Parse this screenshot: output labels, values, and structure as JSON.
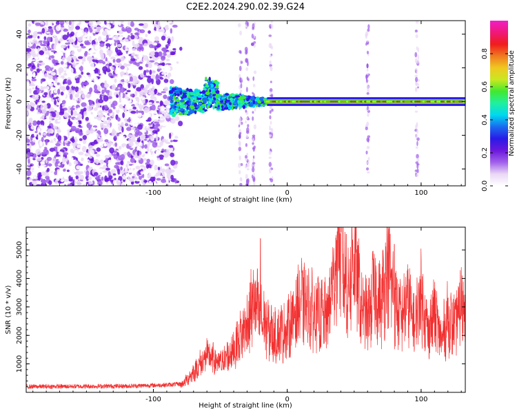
{
  "title": "C2E2.2024.290.02.39.G24",
  "chart_data": [
    {
      "type": "heatmap",
      "xlabel": "Height of straight line (km)",
      "ylabel": "Frequency (Hz)",
      "xlim": [
        -195,
        133
      ],
      "ylim": [
        -50,
        48
      ],
      "xticks": [
        -100,
        0,
        100
      ],
      "yticks": [
        -40,
        -20,
        0,
        20,
        40
      ],
      "colorbar": {
        "label": "Normalized spectral amplitude",
        "range": [
          0,
          1
        ],
        "ticks": [
          "0.0",
          "0.2",
          "0.4",
          "0.6",
          "0.8"
        ],
        "colors": [
          "#ffffff",
          "#ead8f6",
          "#a060ea",
          "#6b18dc",
          "#2a1ae6",
          "#1a6bf0",
          "#00d8f0",
          "#20f0a0",
          "#40e830",
          "#c8e820",
          "#f0c820",
          "#f07a20",
          "#f01c1c",
          "#f01878",
          "#f01ec8"
        ]
      },
      "features": {
        "noise_region_x": [
          -195,
          -80
        ],
        "transition_region_x": [
          -87,
          -15
        ],
        "line_frequency_hz": 0,
        "line_x_range": [
          -15,
          133
        ],
        "line_peak_amplitude": 0.95,
        "faint_vertical_stripes_x": [
          -35,
          -30,
          -25,
          -12,
          60,
          97
        ]
      }
    },
    {
      "type": "line",
      "xlabel": "Height of straight line (km)",
      "ylabel": "SNR (10 * v/v)",
      "xlim": [
        -195,
        133
      ],
      "ylim": [
        0,
        5800
      ],
      "xticks": [
        -100,
        0,
        100
      ],
      "yticks": [
        1000,
        2000,
        3000,
        4000,
        5000
      ],
      "color": "#f23030",
      "envelope": {
        "x": [
          -195,
          -120,
          -90,
          -78,
          -70,
          -60,
          -50,
          -40,
          -30,
          -25,
          -20,
          -10,
          0,
          10,
          20,
          30,
          35,
          40,
          45,
          50,
          55,
          60,
          65,
          70,
          75,
          80,
          85,
          90,
          95,
          100,
          105,
          110,
          115,
          120,
          125,
          130
        ],
        "y": [
          200,
          220,
          260,
          300,
          700,
          1300,
          1000,
          1500,
          2400,
          3200,
          2600,
          2000,
          2200,
          3200,
          2800,
          2600,
          4200,
          5100,
          3400,
          4900,
          3000,
          2600,
          3600,
          3000,
          4600,
          3200,
          2600,
          3300,
          2300,
          3500,
          2100,
          2800,
          1800,
          2600,
          2300,
          3100
        ]
      },
      "peaks": [
        {
          "x": -20,
          "y": 5400
        },
        {
          "x": 38,
          "y": 5800
        },
        {
          "x": 44,
          "y": 5550
        },
        {
          "x": 80,
          "y": 5200
        }
      ]
    }
  ]
}
